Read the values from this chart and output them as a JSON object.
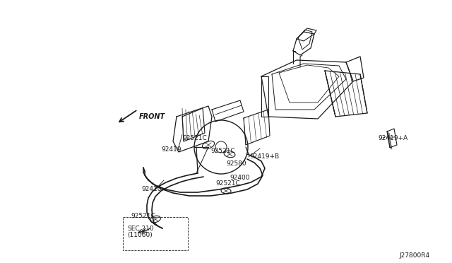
{
  "bg_color": "#ffffff",
  "line_color": "#1a1a1a",
  "fig_width": 6.4,
  "fig_height": 3.72,
  "dpi": 100,
  "diagram_id": "J27800R4",
  "front_label": "FRONT",
  "label_92419": "92419",
  "label_92419A": "92419+A",
  "label_92419B": "92419+B",
  "label_92521C": "92521C",
  "label_92580": "92580",
  "label_92400": "92400",
  "label_92410": "92410",
  "label_SEC210": "SEC.210",
  "label_11060": "(11060)",
  "label_ref": "J27800R4"
}
